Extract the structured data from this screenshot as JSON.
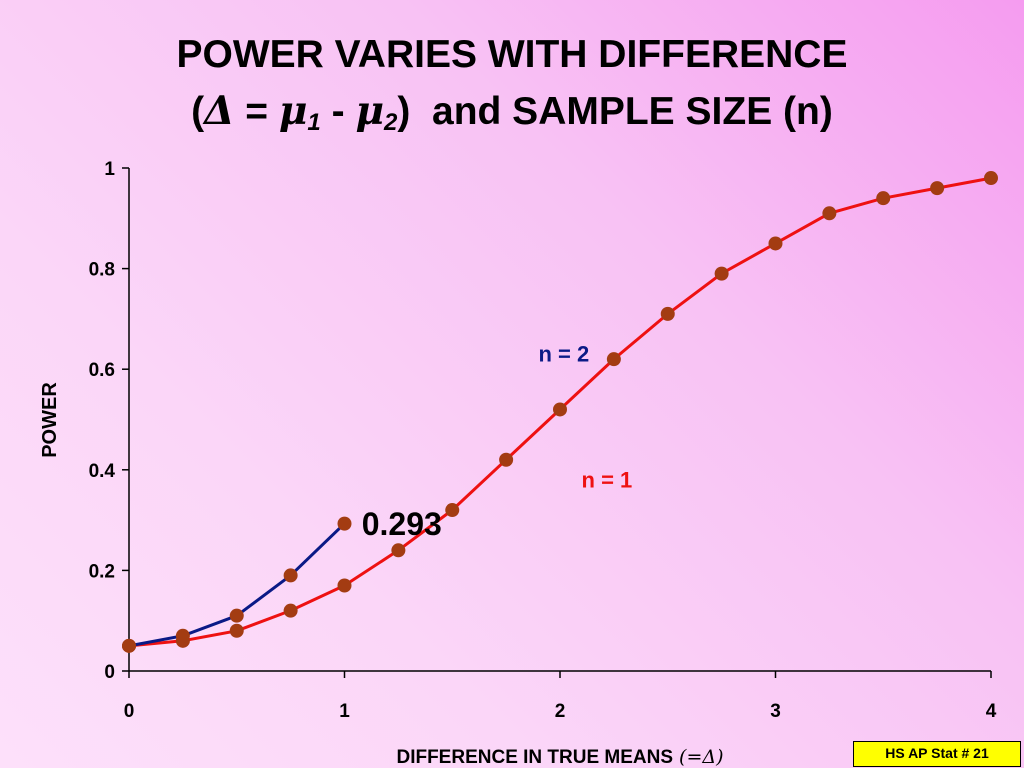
{
  "title": {
    "line1": "POWER VARIES WITH DIFFERENCE",
    "open_paren": "(",
    "delta": "Δ",
    "eq": " = ",
    "mu": "μ",
    "sub1": "1",
    "minus": " - ",
    "sub2": "2",
    "close_paren": ")",
    "rest": "  and SAMPLE SIZE (n)"
  },
  "footer_badge": "HS AP Stat # 21",
  "chart_data": {
    "type": "line",
    "xlabel": "DIFFERENCE IN TRUE MEANS",
    "xlabel_paren": "(=Δ)",
    "ylabel": "POWER",
    "xlim": [
      0,
      4
    ],
    "ylim": [
      0,
      1
    ],
    "x_ticks": [
      "0",
      "1",
      "2",
      "3",
      "4"
    ],
    "y_ticks": [
      "0",
      "0.2",
      "0.4",
      "0.6",
      "0.8",
      "1"
    ],
    "grid": false,
    "series": [
      {
        "name": "n = 1",
        "color": "#ee1111",
        "marker_color": "#a33c12",
        "x": [
          0,
          0.25,
          0.5,
          0.75,
          1,
          1.25,
          1.5,
          1.75,
          2,
          2.25,
          2.5,
          2.75,
          3,
          3.25,
          3.5,
          3.75,
          4
        ],
        "y": [
          0.05,
          0.06,
          0.08,
          0.12,
          0.17,
          0.24,
          0.32,
          0.42,
          0.52,
          0.62,
          0.71,
          0.79,
          0.85,
          0.91,
          0.94,
          0.96,
          0.98
        ]
      },
      {
        "name": "n = 2",
        "color": "#0a1a86",
        "marker_color": "#a33c12",
        "x": [
          0,
          0.25,
          0.5,
          0.75,
          1
        ],
        "y": [
          0.05,
          0.07,
          0.11,
          0.19,
          0.293
        ]
      }
    ],
    "annotations": [
      {
        "text": "n = 2",
        "color": "#0a1a86",
        "x": 1.9,
        "y": 0.615
      },
      {
        "text": "n = 1",
        "color": "#ee1111",
        "x": 2.1,
        "y": 0.365
      },
      {
        "text": "0.293",
        "color": "#000000",
        "x": 1.08,
        "y": 0.27
      }
    ]
  }
}
